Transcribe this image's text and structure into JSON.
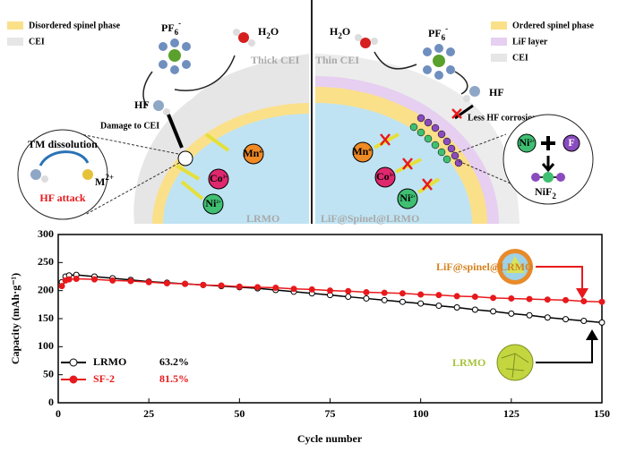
{
  "schematic": {
    "left": {
      "legend": [
        "Disordered spinel phase",
        "CEI"
      ],
      "pf6": {
        "base": "PF",
        "sub": "6",
        "sup": "-"
      },
      "h2o": {
        "base": "H",
        "sub": "2",
        "rest": "O"
      },
      "hf": "HF",
      "cei_label": "Thick CEI",
      "damage": "Damage to CEI",
      "tm": "TM  dissolution",
      "m2": {
        "base": "M",
        "sup": "2+"
      },
      "attack": "HF attack",
      "ions": [
        {
          "base": "Mn",
          "sup": "4+"
        },
        {
          "base": "Co",
          "sup": "3+"
        },
        {
          "base": "Ni",
          "sup": "2+"
        }
      ],
      "particle": "LRMO"
    },
    "right": {
      "legend": [
        "Ordered spinel phase",
        "LiF layer",
        "CEI"
      ],
      "h2o": {
        "base": "H",
        "sub": "2",
        "rest": "O"
      },
      "pf6": {
        "base": "PF",
        "sub": "6",
        "sup": "-"
      },
      "hf": "HF",
      "cei_label": "Thin CEI",
      "less": "Less HF corrosion",
      "ions": [
        {
          "base": "Mn",
          "sup": "4+"
        },
        {
          "base": "Co",
          "sup": "3+"
        },
        {
          "base": "Ni",
          "sup": "2+"
        }
      ],
      "zoom_ni": {
        "base": "Ni",
        "sup": "2+"
      },
      "zoom_f": "F",
      "nif2": {
        "base": "NiF",
        "sub": "2"
      },
      "particle": "LiF@Spinel@LRMO"
    }
  },
  "chart_data": {
    "type": "line",
    "xlabel": "Cycle number",
    "ylabel": "Capacity (mAh·g⁻¹)",
    "x": [
      1,
      2,
      3,
      5,
      10,
      15,
      20,
      25,
      30,
      35,
      40,
      45,
      50,
      55,
      60,
      65,
      70,
      75,
      80,
      85,
      90,
      95,
      100,
      105,
      110,
      115,
      120,
      125,
      130,
      135,
      140,
      145,
      150
    ],
    "series": [
      {
        "name": "LRMO",
        "retention": "63.2%",
        "color": "#000000",
        "values": [
          215,
          225,
          227,
          228,
          225,
          222,
          219,
          216,
          214,
          212,
          210,
          208,
          206,
          204,
          201,
          198,
          195,
          192,
          189,
          186,
          183,
          180,
          177,
          173,
          170,
          166,
          163,
          159,
          156,
          152,
          149,
          146,
          143
        ]
      },
      {
        "name": "SF-2",
        "retention": "81.5%",
        "color": "#e8191c",
        "values": [
          208,
          218,
          220,
          221,
          220,
          218,
          217,
          215,
          213,
          212,
          210,
          209,
          207,
          206,
          205,
          203,
          202,
          200,
          199,
          197,
          196,
          195,
          193,
          192,
          190,
          189,
          187,
          186,
          185,
          184,
          183,
          181,
          180
        ]
      }
    ],
    "xlim": [
      0,
      150
    ],
    "xticks": [
      0,
      25,
      50,
      75,
      100,
      125,
      150
    ],
    "ylim": [
      0,
      300
    ],
    "yticks": [
      0,
      50,
      100,
      150,
      200,
      250,
      300
    ],
    "annotations": [
      "LiF@spinel@LRMO",
      "LRMO"
    ]
  }
}
